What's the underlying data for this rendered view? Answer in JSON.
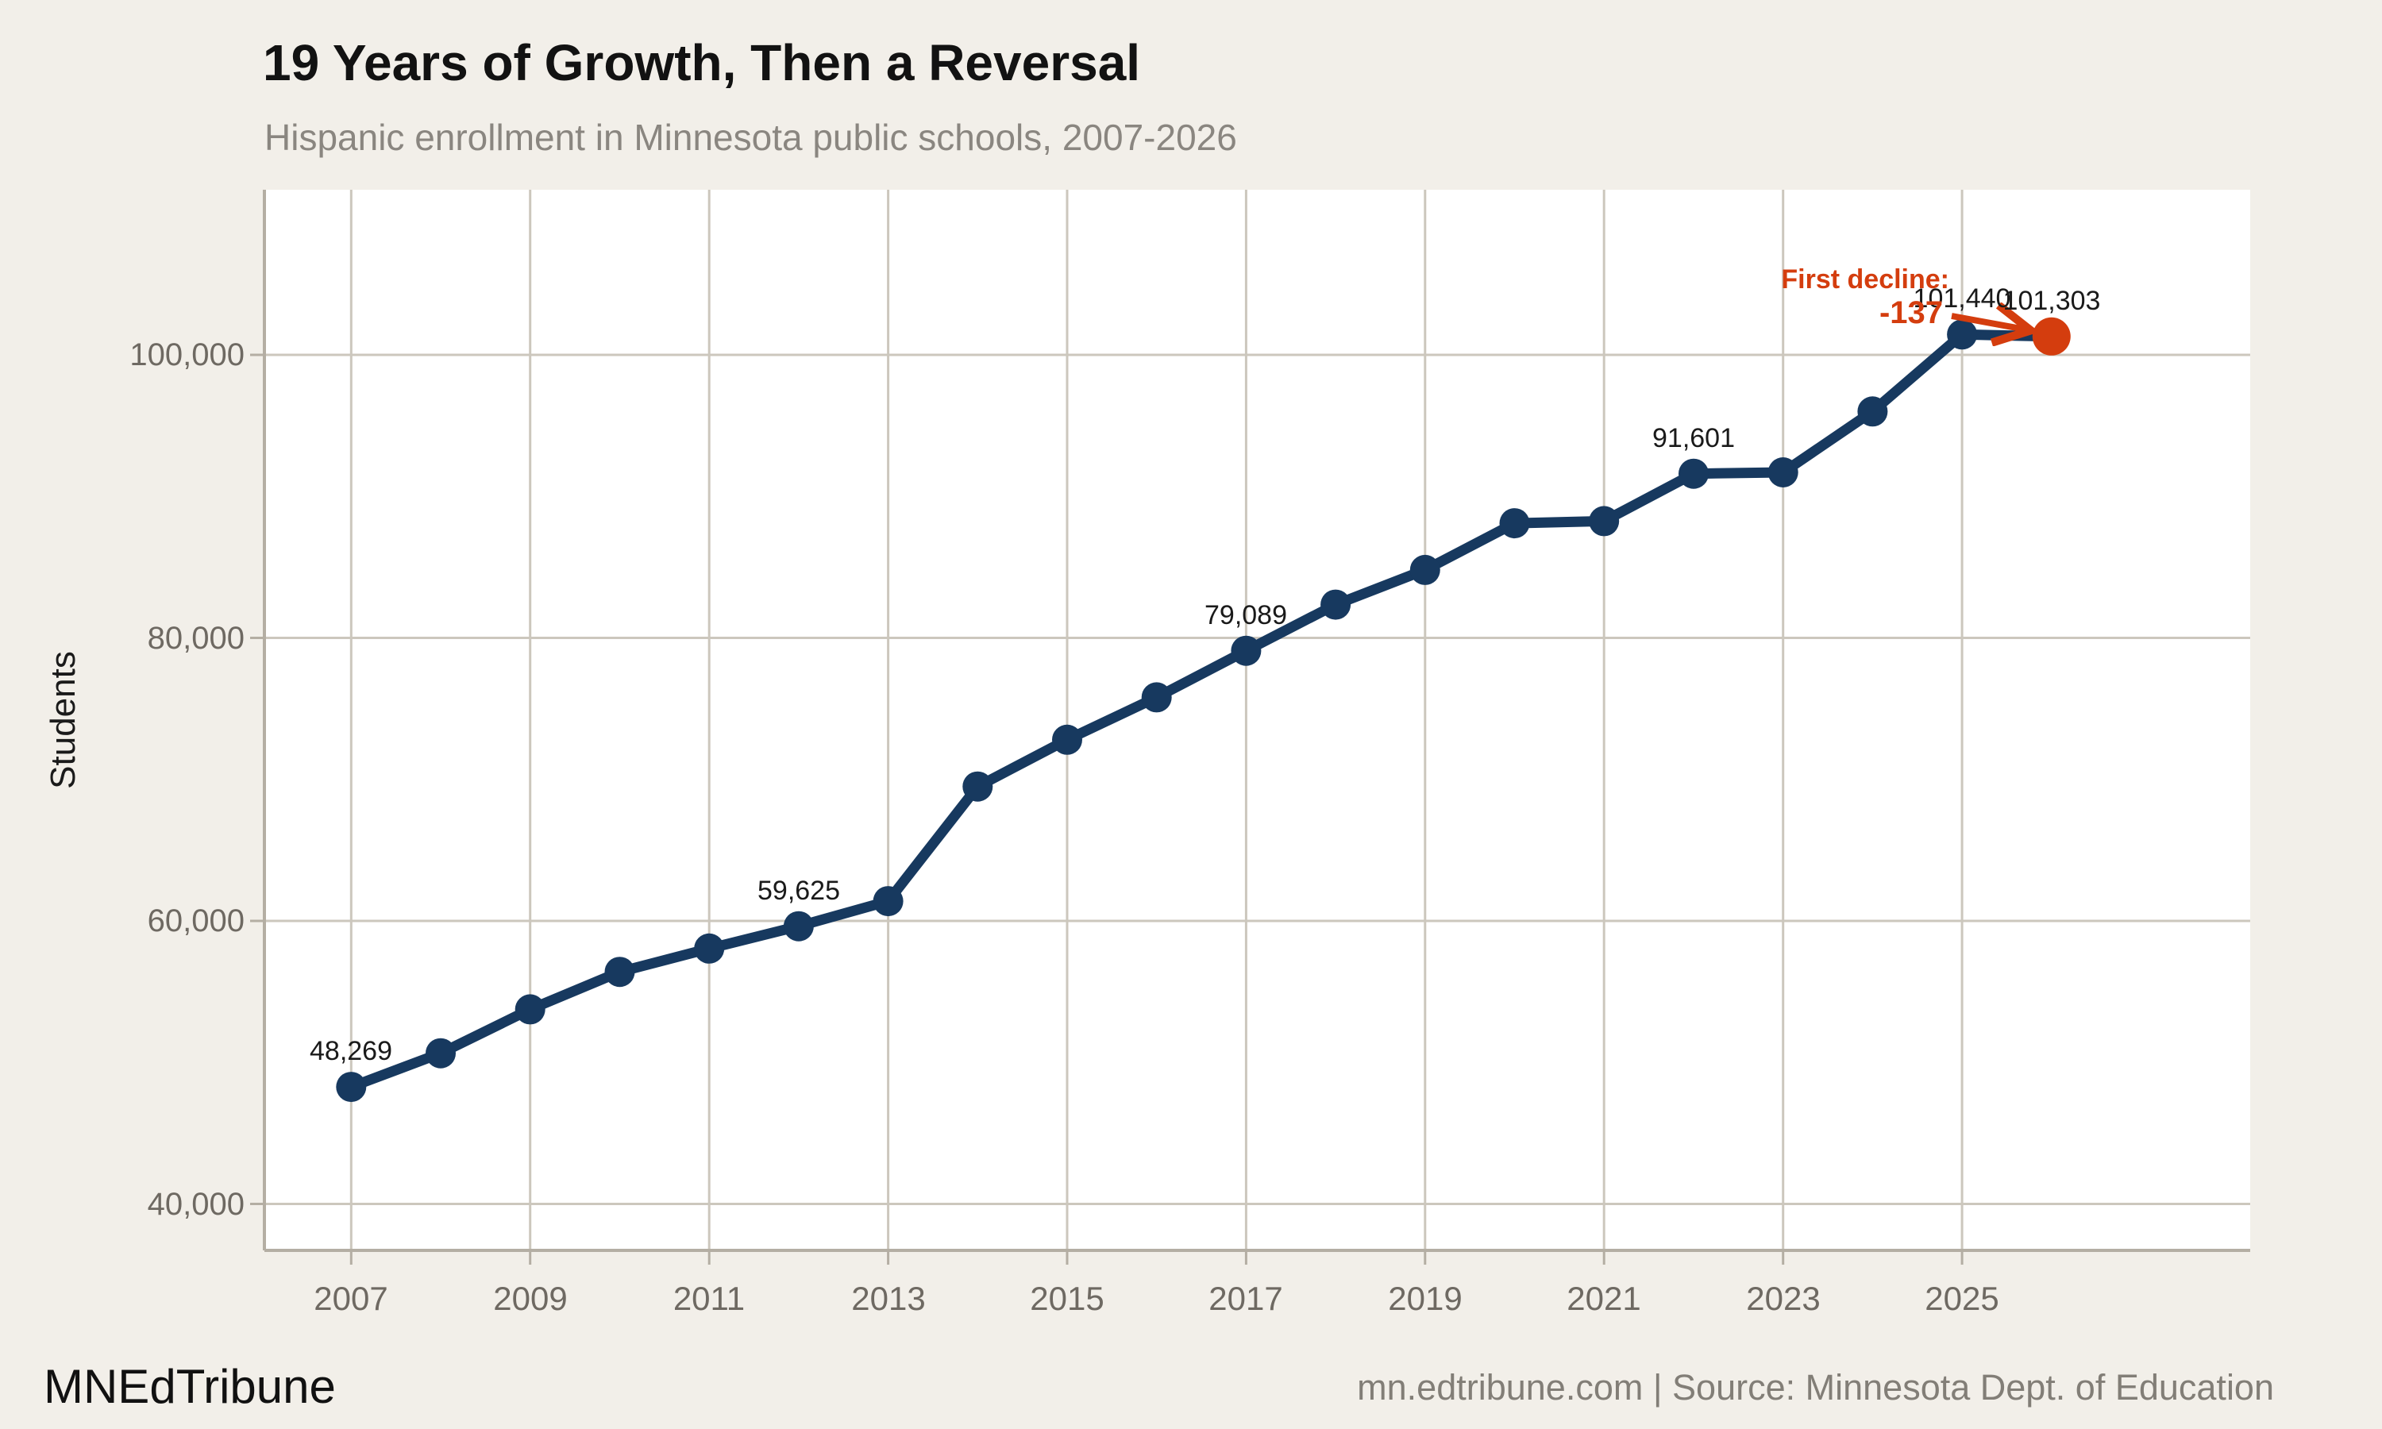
{
  "header": {
    "title": "19 Years of Growth, Then a Reversal",
    "subtitle": "Hispanic enrollment in Minnesota public schools, 2007-2026"
  },
  "footer": {
    "brand": "MNEdTribune",
    "credit": "mn.edtribune.com | Source: Minnesota Dept. of Education"
  },
  "chart_data": {
    "type": "line",
    "title": "19 Years of Growth, Then a Reversal",
    "subtitle": "Hispanic enrollment in Minnesota public schools, 2007-2026",
    "xlabel": "",
    "ylabel": "Students",
    "x": [
      2007,
      2008,
      2009,
      2010,
      2011,
      2012,
      2013,
      2014,
      2015,
      2016,
      2017,
      2018,
      2019,
      2020,
      2021,
      2022,
      2023,
      2024,
      2025,
      2026
    ],
    "series": [
      {
        "name": "Hispanic enrollment",
        "values": [
          48269,
          50650,
          53750,
          56400,
          58050,
          59625,
          61400,
          69500,
          72800,
          75800,
          79089,
          82350,
          84800,
          88100,
          88250,
          91601,
          91700,
          96000,
          101440,
          101303
        ]
      }
    ],
    "point_labels": [
      {
        "year": 2007,
        "text": "48,269"
      },
      {
        "year": 2012,
        "text": "59,625"
      },
      {
        "year": 2017,
        "text": "79,089"
      },
      {
        "year": 2022,
        "text": "91,601"
      },
      {
        "year": 2025,
        "text": "101,440"
      },
      {
        "year": 2026,
        "text": "101,303"
      }
    ],
    "highlight": {
      "year": 2026,
      "value": 101303,
      "change_from_previous": -137,
      "annotation_line1": "First decline:",
      "annotation_line2": "-137"
    },
    "x_ticks": [
      2007,
      2009,
      2011,
      2013,
      2015,
      2017,
      2019,
      2021,
      2023,
      2025
    ],
    "y_ticks": [
      {
        "value": 40000,
        "label": "40,000"
      },
      {
        "value": 60000,
        "label": "60,000"
      },
      {
        "value": 80000,
        "label": "80,000"
      },
      {
        "value": 100000,
        "label": "100,000"
      }
    ],
    "xlim": [
      2006.03,
      2028.22
    ],
    "ylim": [
      36719,
      111669
    ],
    "grid": true,
    "legend_position": "none",
    "colors": {
      "line": "#17395f",
      "marker": "#17395f",
      "highlight_marker": "#d43d0e",
      "annotation_text": "#d43d0e",
      "page_background": "#f2efe9",
      "plot_background": "#ffffff",
      "gridline": "#ccc7bd",
      "axis_frame": "#b4aea3",
      "tick_label": "#6e6962",
      "title_text": "#121212",
      "subtitle_text": "#8a8680",
      "data_label": "#1a1a1a",
      "credit_text": "#827e77"
    }
  }
}
